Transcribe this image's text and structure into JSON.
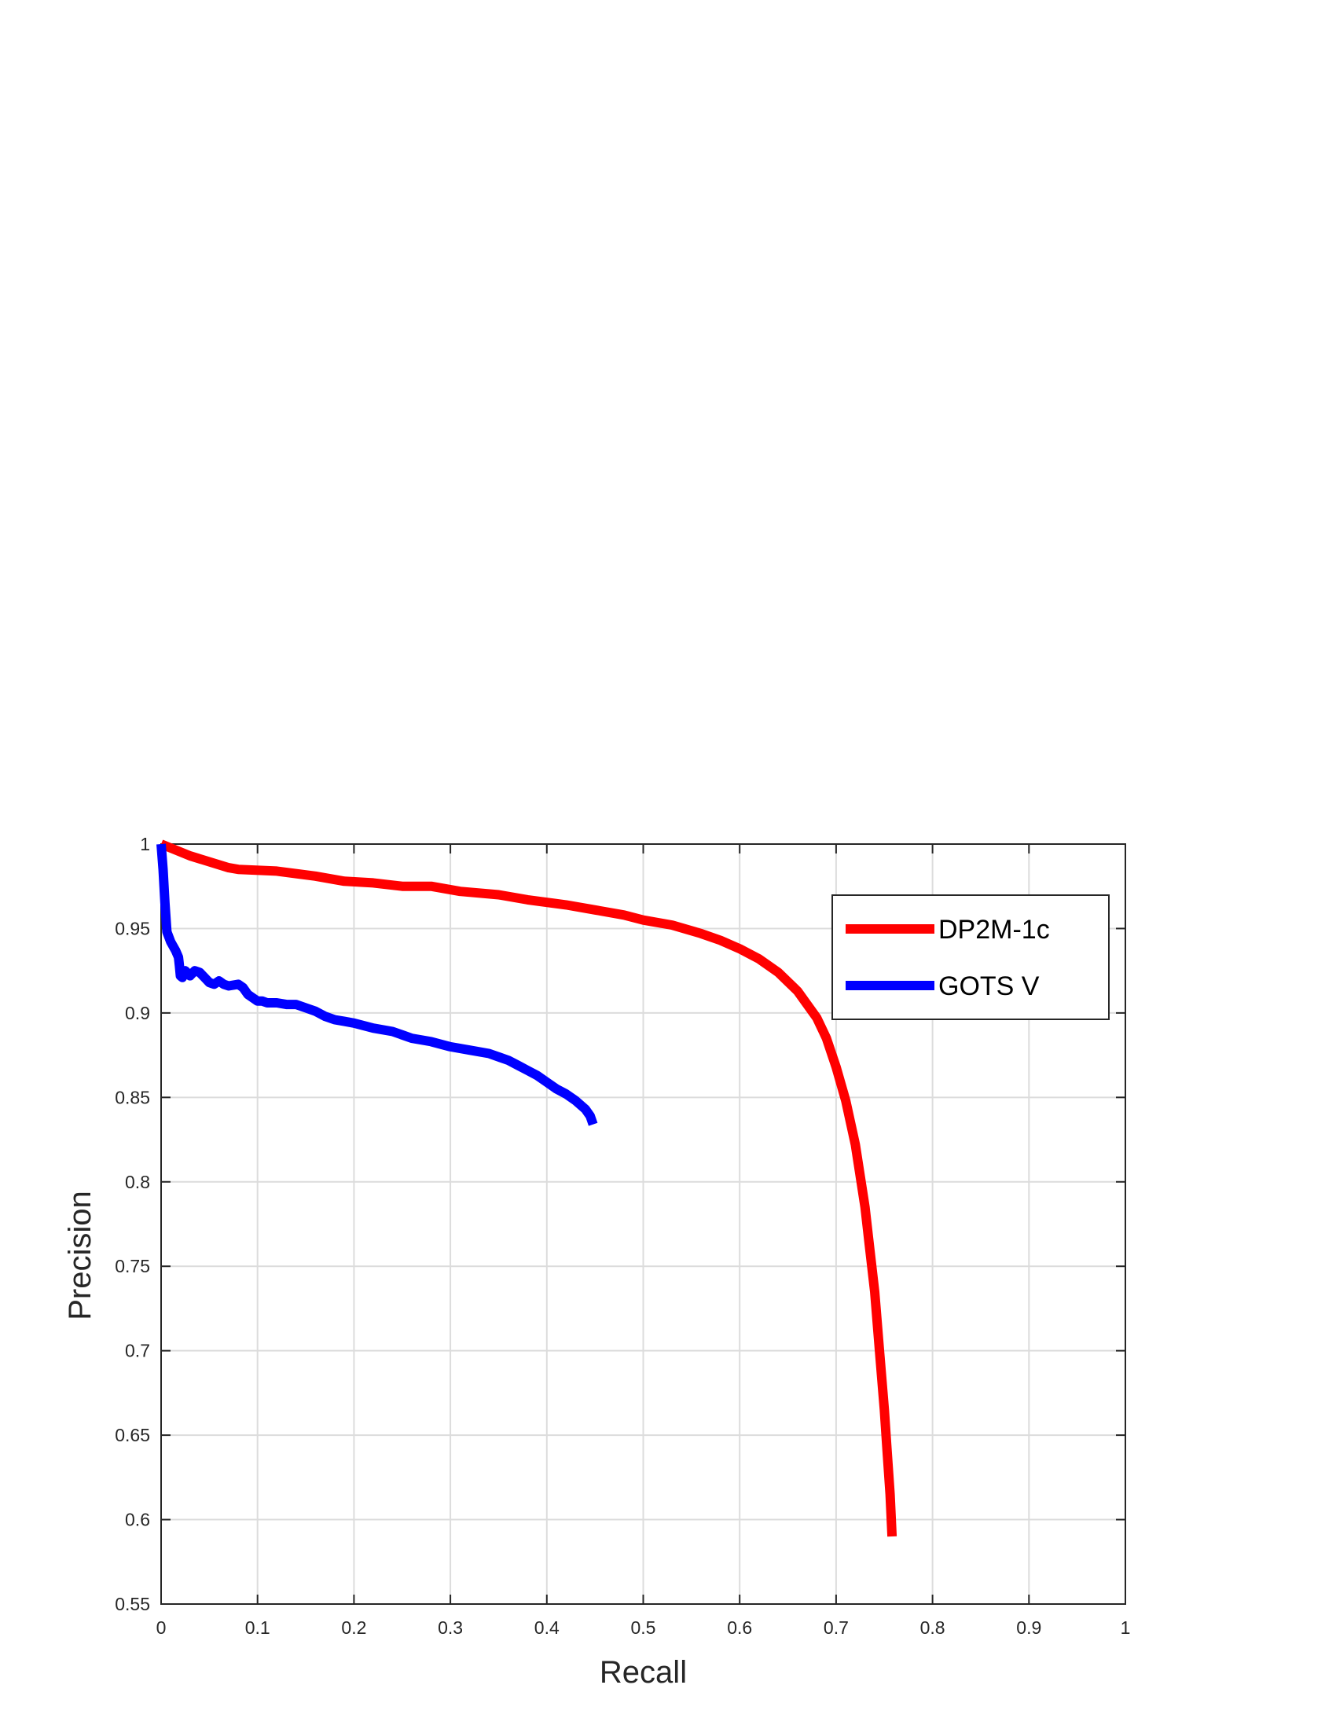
{
  "chart_data": {
    "type": "line",
    "title": "",
    "xlabel": "Recall",
    "ylabel": "Precision",
    "xlim": [
      0,
      1
    ],
    "ylim": [
      0.55,
      1
    ],
    "xticks": [
      0,
      0.1,
      0.2,
      0.3,
      0.4,
      0.5,
      0.6,
      0.7,
      0.8,
      0.9,
      1
    ],
    "xtick_labels": [
      "0",
      "0.1",
      "0.2",
      "0.3",
      "0.4",
      "0.5",
      "0.6",
      "0.7",
      "0.8",
      "0.9",
      "1"
    ],
    "yticks": [
      0.55,
      0.6,
      0.65,
      0.7,
      0.75,
      0.8,
      0.85,
      0.9,
      0.95,
      1
    ],
    "ytick_labels": [
      "0.55",
      "0.6",
      "0.65",
      "0.7",
      "0.75",
      "0.8",
      "0.85",
      "0.9",
      "0.95",
      "1"
    ],
    "grid": true,
    "legend_position": "top-right",
    "series": [
      {
        "name": "DP2M-1c",
        "color": "#ff0000",
        "x": [
          0.0,
          0.03,
          0.07,
          0.08,
          0.12,
          0.16,
          0.19,
          0.22,
          0.25,
          0.28,
          0.31,
          0.35,
          0.38,
          0.42,
          0.45,
          0.48,
          0.5,
          0.53,
          0.56,
          0.58,
          0.6,
          0.62,
          0.64,
          0.66,
          0.68,
          0.69,
          0.7,
          0.71,
          0.72,
          0.73,
          0.735,
          0.74,
          0.745,
          0.75,
          0.753,
          0.756,
          0.758
        ],
        "y": [
          1.0,
          0.993,
          0.986,
          0.985,
          0.984,
          0.981,
          0.978,
          0.977,
          0.975,
          0.975,
          0.972,
          0.97,
          0.967,
          0.964,
          0.961,
          0.958,
          0.955,
          0.952,
          0.947,
          0.943,
          0.938,
          0.932,
          0.924,
          0.913,
          0.897,
          0.885,
          0.868,
          0.848,
          0.822,
          0.785,
          0.76,
          0.735,
          0.7,
          0.665,
          0.64,
          0.615,
          0.59
        ]
      },
      {
        "name": "GOTS V",
        "color": "#0000ff",
        "x": [
          0.0,
          0.002,
          0.004,
          0.006,
          0.01,
          0.015,
          0.018,
          0.019,
          0.02,
          0.022,
          0.025,
          0.03,
          0.035,
          0.04,
          0.05,
          0.055,
          0.06,
          0.065,
          0.07,
          0.08,
          0.085,
          0.09,
          0.1,
          0.105,
          0.11,
          0.12,
          0.13,
          0.14,
          0.15,
          0.16,
          0.17,
          0.18,
          0.19,
          0.2,
          0.22,
          0.24,
          0.25,
          0.26,
          0.28,
          0.3,
          0.32,
          0.34,
          0.35,
          0.36,
          0.37,
          0.38,
          0.39,
          0.4,
          0.41,
          0.42,
          0.43,
          0.44,
          0.445,
          0.448
        ],
        "y": [
          1.0,
          0.985,
          0.965,
          0.948,
          0.942,
          0.937,
          0.933,
          0.928,
          0.922,
          0.921,
          0.925,
          0.922,
          0.925,
          0.924,
          0.918,
          0.917,
          0.919,
          0.917,
          0.916,
          0.917,
          0.915,
          0.911,
          0.907,
          0.907,
          0.906,
          0.906,
          0.905,
          0.905,
          0.903,
          0.901,
          0.898,
          0.896,
          0.895,
          0.894,
          0.891,
          0.889,
          0.887,
          0.885,
          0.883,
          0.88,
          0.878,
          0.876,
          0.874,
          0.872,
          0.869,
          0.866,
          0.863,
          0.859,
          0.855,
          0.852,
          0.848,
          0.843,
          0.839,
          0.834
        ]
      }
    ]
  }
}
